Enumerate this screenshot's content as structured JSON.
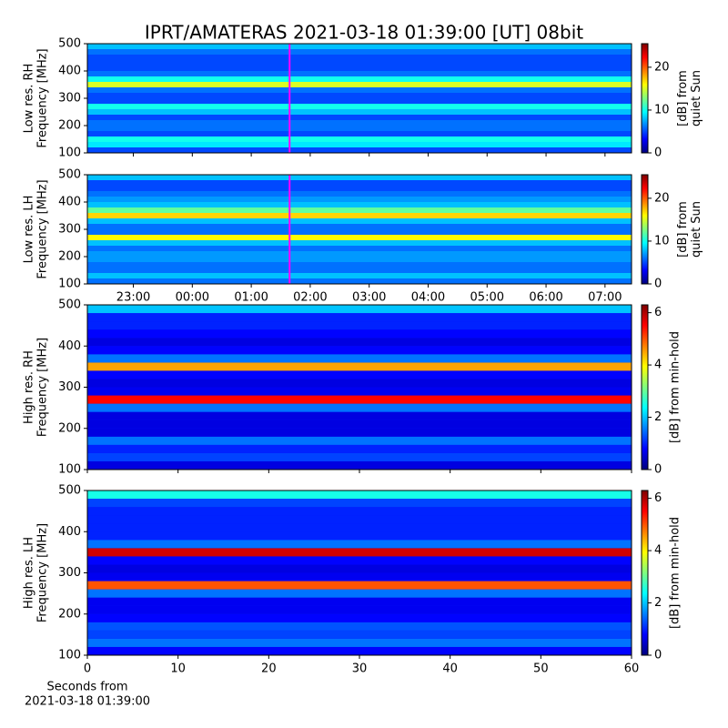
{
  "chart_data": [
    {
      "type": "heatmap",
      "title": "IPRT/AMATERAS 2021-03-18 01:39:00 [UT]   08bit",
      "ylabel": [
        "Low res. RH",
        "Frequency [MHz]"
      ],
      "colorbar_label": [
        "[dB] from",
        "quiet Sun"
      ],
      "colormap": "jet",
      "clim": [
        0,
        25.5
      ],
      "cticks": [
        0,
        10,
        20
      ],
      "xlim": [
        -1.78,
        7.45
      ],
      "xticks": [
        {
          "value": -1,
          "label": "23:00"
        },
        {
          "value": 0,
          "label": "00:00"
        },
        {
          "value": 1,
          "label": "01:00"
        },
        {
          "value": 2,
          "label": "02:00"
        },
        {
          "value": 3,
          "label": "03:00"
        },
        {
          "value": 4,
          "label": "04:00"
        },
        {
          "value": 5,
          "label": "05:00"
        },
        {
          "value": 6,
          "label": "06:00"
        },
        {
          "value": 7,
          "label": "07:00"
        }
      ],
      "xticklabels": false,
      "ylim": [
        100,
        500
      ],
      "yticks": [
        100,
        200,
        300,
        400,
        500
      ],
      "marker": {
        "x": 1.65,
        "color": "#ff00ff"
      },
      "y": [
        110,
        130,
        150,
        170,
        190,
        210,
        230,
        250,
        270,
        290,
        310,
        330,
        350,
        370,
        390,
        410,
        430,
        450,
        470,
        490
      ],
      "values": [
        5,
        9,
        10,
        5,
        6,
        6,
        5,
        8,
        10,
        5,
        5,
        6,
        15,
        10,
        6,
        5,
        5,
        5,
        6,
        8
      ]
    },
    {
      "type": "heatmap",
      "ylabel": [
        "Low res. LH",
        "Frequency [MHz]"
      ],
      "colorbar_label": [
        "[dB] from",
        "quiet Sun"
      ],
      "colormap": "jet",
      "clim": [
        0,
        25.5
      ],
      "cticks": [
        0,
        10,
        20
      ],
      "xlim": [
        -1.78,
        7.45
      ],
      "xticks": [
        {
          "value": -1,
          "label": "23:00"
        },
        {
          "value": 0,
          "label": "00:00"
        },
        {
          "value": 1,
          "label": "01:00"
        },
        {
          "value": 2,
          "label": "02:00"
        },
        {
          "value": 3,
          "label": "03:00"
        },
        {
          "value": 4,
          "label": "04:00"
        },
        {
          "value": 5,
          "label": "05:00"
        },
        {
          "value": 6,
          "label": "06:00"
        },
        {
          "value": 7,
          "label": "07:00"
        }
      ],
      "xticklabels": true,
      "ylim": [
        100,
        500
      ],
      "yticks": [
        100,
        200,
        300,
        400,
        500
      ],
      "marker": {
        "x": 1.65,
        "color": "#ff00ff"
      },
      "y": [
        110,
        130,
        150,
        170,
        190,
        210,
        230,
        250,
        270,
        290,
        310,
        330,
        350,
        370,
        390,
        410,
        430,
        450,
        470,
        490
      ],
      "values": [
        6,
        8,
        6,
        6,
        7,
        7,
        6,
        8,
        16,
        6,
        6,
        8,
        17,
        12,
        8,
        7,
        6,
        5,
        5,
        8
      ]
    },
    {
      "type": "heatmap",
      "ylabel": [
        "High res. RH",
        "Frequency [MHz]"
      ],
      "colorbar_label": [
        "[dB] from min-hold"
      ],
      "colormap": "jet",
      "clim": [
        0,
        6.3
      ],
      "cticks": [
        0,
        2,
        4,
        6
      ],
      "xlim": [
        0,
        60
      ],
      "xticks": [
        0,
        10,
        20,
        30,
        40,
        50,
        60
      ],
      "xticklabels": false,
      "ylim": [
        100,
        500
      ],
      "yticks": [
        100,
        200,
        300,
        400,
        500
      ],
      "y": [
        110,
        130,
        150,
        170,
        190,
        210,
        230,
        250,
        270,
        290,
        310,
        330,
        350,
        370,
        390,
        410,
        430,
        450,
        470,
        490
      ],
      "values": [
        0.6,
        1.2,
        1,
        1.5,
        0.6,
        0.6,
        0.6,
        1.5,
        5.5,
        0.7,
        0.6,
        0.8,
        4.5,
        1.5,
        0.8,
        0.6,
        0.8,
        1,
        1,
        2
      ]
    },
    {
      "type": "heatmap",
      "ylabel": [
        "High res. LH",
        "Frequency [MHz]"
      ],
      "colorbar_label": [
        "[dB] from min-hold"
      ],
      "colormap": "jet",
      "clim": [
        0,
        6.3
      ],
      "cticks": [
        0,
        2,
        4,
        6
      ],
      "xlim": [
        0,
        60
      ],
      "xticks": [
        0,
        10,
        20,
        30,
        40,
        50,
        60
      ],
      "xticklabels": true,
      "xlabel": [
        "Seconds from",
        "2021-03-18 01:39:00"
      ],
      "ylim": [
        100,
        500
      ],
      "yticks": [
        100,
        200,
        300,
        400,
        500
      ],
      "y": [
        110,
        130,
        150,
        170,
        190,
        210,
        230,
        250,
        270,
        290,
        310,
        330,
        350,
        370,
        390,
        410,
        430,
        450,
        470,
        490
      ],
      "values": [
        0.8,
        1.5,
        1.2,
        1.3,
        0.8,
        0.7,
        0.7,
        1.5,
        5,
        0.7,
        0.6,
        0.8,
        5.8,
        1.5,
        1,
        1,
        1,
        1,
        1.2,
        2.5
      ]
    }
  ]
}
